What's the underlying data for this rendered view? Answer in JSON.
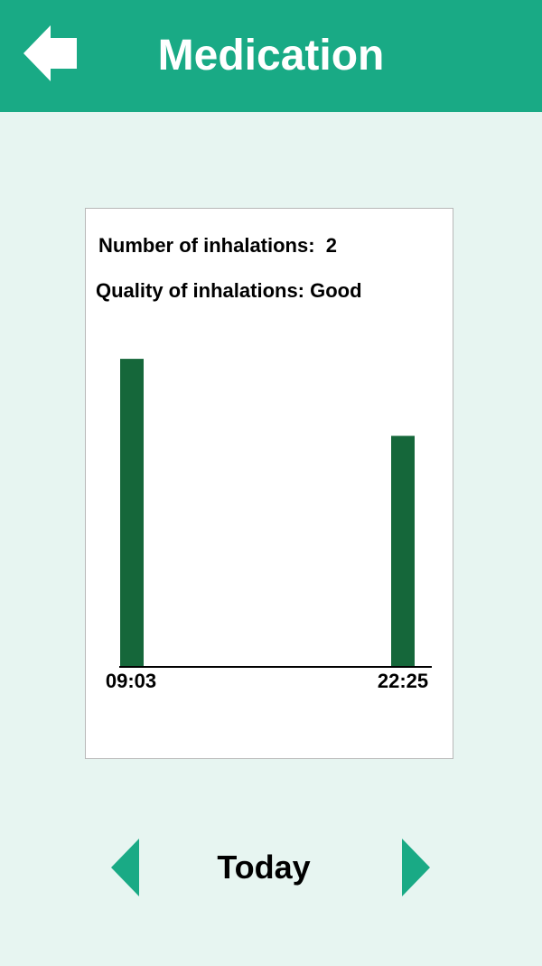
{
  "header": {
    "title": "Medication",
    "back_icon": "arrow-left-icon",
    "color": "#19aa85"
  },
  "summary": {
    "count_label": "Number of inhalations:  2",
    "quality_label": "Quality of inhalations: Good"
  },
  "chart_data": {
    "type": "bar",
    "categories": [
      "09:03",
      "22:25"
    ],
    "values": [
      1.0,
      0.75
    ],
    "bar_color": "#15673a",
    "ylim": [
      0,
      1.1
    ],
    "grid": false,
    "legend": "none"
  },
  "navigation": {
    "day_label": "Today",
    "prev_icon": "triangle-left-icon",
    "next_icon": "triangle-right-icon",
    "color": "#19aa85"
  }
}
